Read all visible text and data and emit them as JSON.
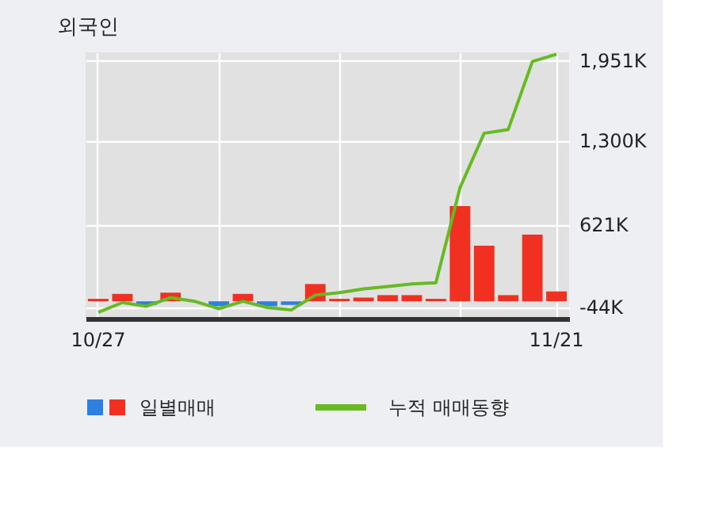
{
  "chart_data": {
    "type": "bar",
    "title": "외국인",
    "categories": [
      "10/27",
      null,
      null,
      null,
      null,
      null,
      null,
      null,
      null,
      null,
      null,
      null,
      null,
      null,
      null,
      null,
      null,
      null,
      null,
      "11/21"
    ],
    "series": [
      {
        "name": "일별매매",
        "colors": [
          "#f03020",
          "#f03020",
          "#2f7fe0",
          "#f03020",
          "#f03020",
          "#2f7fe0",
          "#f03020",
          "#2f7fe0",
          "#2f7fe0",
          "#f03020",
          "#f03020",
          "#f03020",
          "#f03020",
          "#f03020",
          "#f03020",
          "#f03020",
          "#f03020",
          "#f03020",
          "#f03020",
          "#f03020"
        ],
        "values": [
          20,
          60,
          -30,
          70,
          0,
          -40,
          60,
          -40,
          -30,
          140,
          20,
          30,
          50,
          50,
          20,
          770,
          450,
          50,
          540,
          80
        ]
      },
      {
        "name": "누적 매매동향",
        "type": "line",
        "color": "#66bb22",
        "values": [
          -90,
          -10,
          -40,
          30,
          0,
          -60,
          0,
          -50,
          -70,
          50,
          70,
          100,
          120,
          140,
          150,
          920,
          1360,
          1390,
          1940,
          2000
        ]
      }
    ],
    "ylim": [
      -140,
      2015
    ],
    "yticks": [
      {
        "value": -44,
        "label": "-44K"
      },
      {
        "value": 621,
        "label": "621K"
      },
      {
        "value": 1300,
        "label": "1,300K"
      },
      {
        "value": 1951,
        "label": "1,951K"
      }
    ],
    "grid": true,
    "legend": "bottom"
  }
}
